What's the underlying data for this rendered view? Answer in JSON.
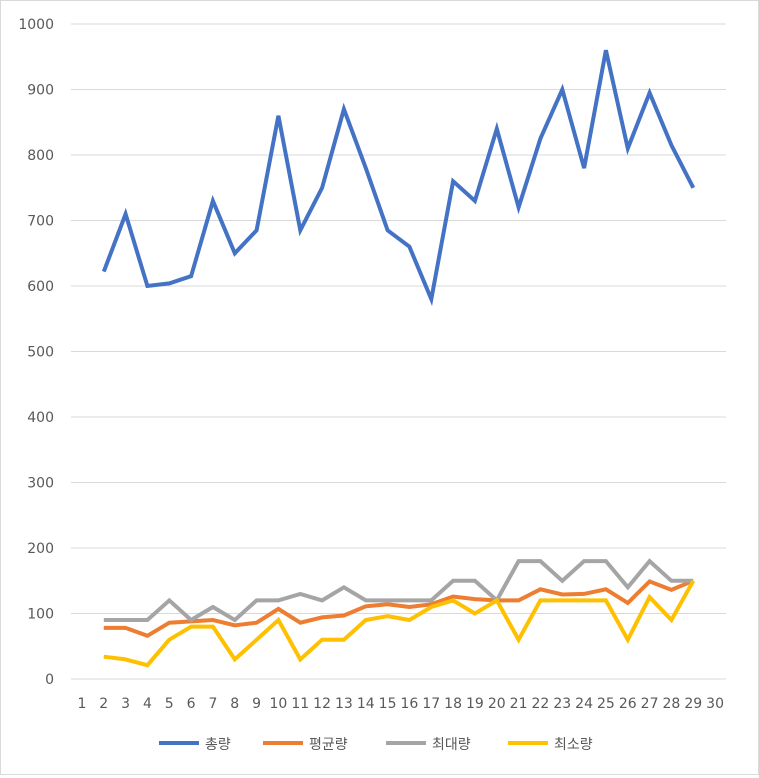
{
  "chart_data": {
    "type": "line",
    "title": "",
    "xlabel": "",
    "ylabel": "",
    "x": [
      1,
      2,
      3,
      4,
      5,
      6,
      7,
      8,
      9,
      10,
      11,
      12,
      13,
      14,
      15,
      16,
      17,
      18,
      19,
      20,
      21,
      22,
      23,
      24,
      25,
      26,
      27,
      28,
      29,
      30
    ],
    "ylim": [
      0,
      1000
    ],
    "yticks": [
      0,
      100,
      200,
      300,
      400,
      500,
      600,
      700,
      800,
      900,
      1000
    ],
    "grid": true,
    "legend_position": "bottom",
    "series": [
      {
        "name": "총량",
        "color": "#4472C4",
        "points": [
          [
            2,
            622
          ],
          [
            3,
            710
          ],
          [
            4,
            600
          ],
          [
            5,
            604
          ],
          [
            6,
            615
          ],
          [
            7,
            730
          ],
          [
            8,
            650
          ],
          [
            9,
            685
          ],
          [
            10,
            860
          ],
          [
            11,
            685
          ],
          [
            12,
            750
          ],
          [
            13,
            870
          ],
          [
            14,
            780
          ],
          [
            15,
            685
          ],
          [
            16,
            660
          ],
          [
            17,
            580
          ],
          [
            18,
            760
          ],
          [
            19,
            730
          ],
          [
            20,
            840
          ],
          [
            21,
            720
          ],
          [
            22,
            825
          ],
          [
            23,
            900
          ],
          [
            24,
            780
          ],
          [
            25,
            960
          ],
          [
            26,
            810
          ],
          [
            27,
            895
          ],
          [
            28,
            815
          ],
          [
            29,
            750
          ]
        ]
      },
      {
        "name": "평균량",
        "color": "#ED7D31",
        "points": [
          [
            2,
            78
          ],
          [
            3,
            78
          ],
          [
            4,
            66
          ],
          [
            5,
            86
          ],
          [
            6,
            88
          ],
          [
            7,
            90
          ],
          [
            8,
            82
          ],
          [
            9,
            86
          ],
          [
            10,
            107
          ],
          [
            11,
            86
          ],
          [
            12,
            94
          ],
          [
            13,
            97
          ],
          [
            14,
            111
          ],
          [
            15,
            114
          ],
          [
            16,
            110
          ],
          [
            17,
            114
          ],
          [
            18,
            126
          ],
          [
            19,
            122
          ],
          [
            20,
            120
          ],
          [
            21,
            120
          ],
          [
            22,
            137
          ],
          [
            23,
            129
          ],
          [
            24,
            130
          ],
          [
            25,
            137
          ],
          [
            26,
            116
          ],
          [
            27,
            149
          ],
          [
            28,
            136
          ],
          [
            29,
            150
          ]
        ]
      },
      {
        "name": "최대량",
        "color": "#A5A5A5",
        "points": [
          [
            2,
            90
          ],
          [
            3,
            90
          ],
          [
            4,
            90
          ],
          [
            5,
            120
          ],
          [
            6,
            90
          ],
          [
            7,
            110
          ],
          [
            8,
            90
          ],
          [
            9,
            120
          ],
          [
            10,
            120
          ],
          [
            11,
            130
          ],
          [
            12,
            120
          ],
          [
            13,
            140
          ],
          [
            14,
            120
          ],
          [
            15,
            120
          ],
          [
            16,
            120
          ],
          [
            17,
            120
          ],
          [
            18,
            150
          ],
          [
            19,
            150
          ],
          [
            20,
            120
          ],
          [
            21,
            180
          ],
          [
            22,
            180
          ],
          [
            23,
            150
          ],
          [
            24,
            180
          ],
          [
            25,
            180
          ],
          [
            26,
            140
          ],
          [
            27,
            180
          ],
          [
            28,
            150
          ],
          [
            29,
            150
          ]
        ]
      },
      {
        "name": "최소량",
        "color": "#FFC000",
        "points": [
          [
            2,
            34
          ],
          [
            3,
            30
          ],
          [
            4,
            21
          ],
          [
            5,
            60
          ],
          [
            6,
            80
          ],
          [
            7,
            80
          ],
          [
            8,
            30
          ],
          [
            9,
            60
          ],
          [
            10,
            90
          ],
          [
            11,
            30
          ],
          [
            12,
            60
          ],
          [
            13,
            60
          ],
          [
            14,
            90
          ],
          [
            15,
            96
          ],
          [
            16,
            90
          ],
          [
            17,
            110
          ],
          [
            18,
            120
          ],
          [
            19,
            100
          ],
          [
            20,
            120
          ],
          [
            21,
            60
          ],
          [
            22,
            120
          ],
          [
            23,
            120
          ],
          [
            24,
            120
          ],
          [
            25,
            120
          ],
          [
            26,
            60
          ],
          [
            27,
            125
          ],
          [
            28,
            90
          ],
          [
            29,
            150
          ]
        ]
      }
    ]
  }
}
